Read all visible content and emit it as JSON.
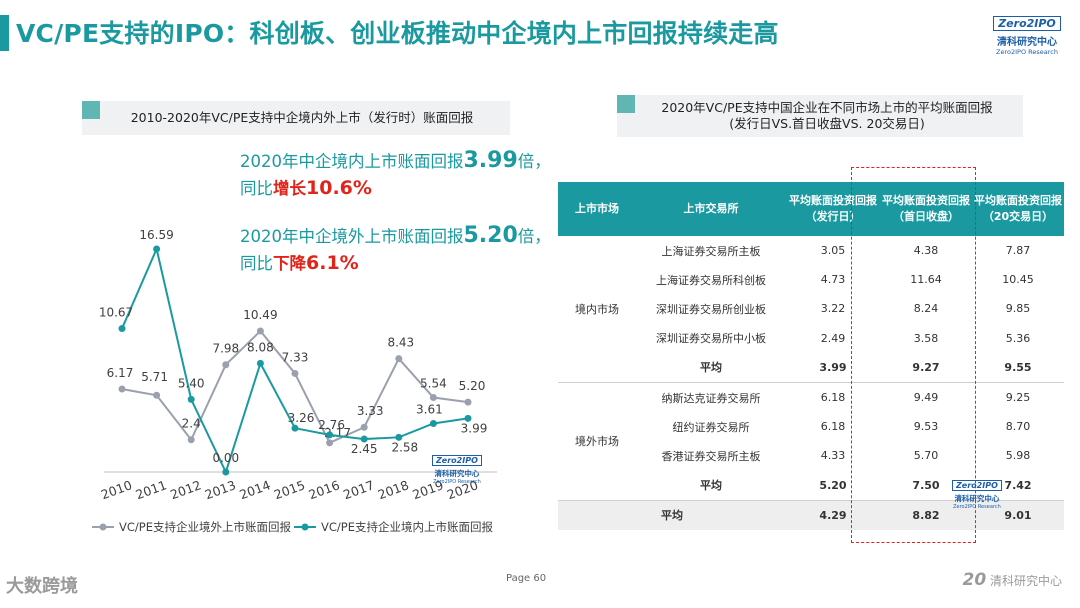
{
  "header": {
    "title": "VC/PE支持的IPO：科创板、创业板推动中企境内上市回报持续走高"
  },
  "logo": {
    "box": "Zero2IPO",
    "cn": "清科研究中心",
    "en": "Zero2IPO Research"
  },
  "left_panel": {
    "title": "2010-2020年VC/PE支持中企境内外上市（发行时）账面回报"
  },
  "annotations": {
    "domestic_a": "2020年中企境内上市账面回报",
    "domestic_value": "3.99",
    "domestic_b": "倍，",
    "domestic_c": "同比",
    "domestic_change": "增长",
    "domestic_pct": "10.6%",
    "overseas_a": "2020年中企境外上市账面回报",
    "overseas_value": "5.20",
    "overseas_b": "倍，",
    "overseas_c": "同比",
    "overseas_change": "下降",
    "overseas_pct": "6.1%"
  },
  "chart_data": [
    {
      "type": "line",
      "x": [
        "2010",
        "2011",
        "2012",
        "2013",
        "2014",
        "2015",
        "2016",
        "2017",
        "2018",
        "2019",
        "2020"
      ],
      "series": [
        {
          "name": "VC/PE支持企业境外上市账面回报",
          "color": "#9aa0ad",
          "values": [
            6.17,
            5.71,
            2.4,
            7.98,
            10.49,
            7.33,
            2.17,
            3.33,
            8.43,
            5.54,
            5.2
          ],
          "labels": [
            "6.17",
            "5.71",
            "2.4",
            "7.98",
            "10.49",
            "7.33",
            "2.17",
            "3.33",
            "8.43",
            "5.54",
            "5.20"
          ]
        },
        {
          "name": "VC/PE支持企业境内上市账面回报",
          "color": "#1a9aa0",
          "values": [
            10.67,
            16.59,
            5.4,
            0.0,
            8.08,
            3.26,
            2.76,
            2.45,
            2.58,
            3.61,
            3.99
          ],
          "labels": [
            "10.67",
            "16.59",
            "5.40",
            "0.00",
            "8.08",
            "3.26",
            "2.76",
            "2.45",
            "2.58",
            "3.61",
            "3.99"
          ]
        }
      ],
      "ylim": [
        0,
        18
      ],
      "grid": false,
      "legend": "bottom"
    },
    {
      "type": "table",
      "title_line1": "2020年VC/PE支持中国企业在不同市场上市的平均账面回报",
      "title_line2": "(发行日VS.首日收盘VS. 20交易日)",
      "columns": [
        "上市市场",
        "上市交易所",
        "平均账面投资回报\n（发行日）",
        "平均账面投资回报\n（首日收盘）",
        "平均账面投资回报\n（20交易日）"
      ],
      "groups": [
        {
          "market": "境内市场",
          "rows": [
            [
              "上海证券交易所主板",
              "3.05",
              "4.38",
              "7.87"
            ],
            [
              "上海证券交易所科创板",
              "4.73",
              "11.64",
              "10.45"
            ],
            [
              "深圳证券交易所创业板",
              "3.22",
              "8.24",
              "9.85"
            ],
            [
              "深圳证券交易所中小板",
              "2.49",
              "3.58",
              "5.36"
            ],
            [
              "平均",
              "3.99",
              "9.27",
              "9.55"
            ]
          ]
        },
        {
          "market": "境外市场",
          "rows": [
            [
              "纳斯达克证券交易所",
              "6.18",
              "9.49",
              "9.25"
            ],
            [
              "纽约证券交易所",
              "6.18",
              "9.53",
              "8.70"
            ],
            [
              "香港证券交易所主板",
              "4.33",
              "5.70",
              "5.98"
            ],
            [
              "平均",
              "5.20",
              "7.50",
              "7.42"
            ]
          ]
        }
      ],
      "total": [
        "平均",
        "4.29",
        "8.82",
        "9.01"
      ]
    }
  ],
  "footer": {
    "page": "Page  60",
    "wm_left": "大数跨境",
    "wm_right_num": "20",
    "wm_right_txt": "清科研究中心"
  }
}
